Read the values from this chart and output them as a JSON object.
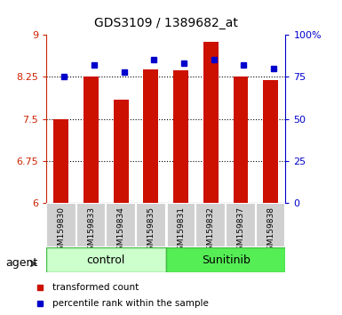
{
  "title": "GDS3109 / 1389682_at",
  "samples": [
    "GSM159830",
    "GSM159833",
    "GSM159834",
    "GSM159835",
    "GSM159831",
    "GSM159832",
    "GSM159837",
    "GSM159838"
  ],
  "red_values": [
    7.5,
    8.26,
    7.85,
    8.38,
    8.36,
    8.88,
    8.26,
    8.19
  ],
  "blue_values": [
    75,
    82,
    78,
    85,
    83,
    85,
    82,
    80
  ],
  "ylim_left": [
    6,
    9
  ],
  "ylim_right": [
    0,
    100
  ],
  "yticks_left": [
    6,
    6.75,
    7.5,
    8.25,
    9
  ],
  "yticks_right": [
    0,
    25,
    50,
    75,
    100
  ],
  "ytick_labels_right": [
    "0",
    "25",
    "50",
    "75",
    "100%"
  ],
  "bar_color": "#cc1100",
  "blue_color": "#0000cc",
  "bar_width": 0.5,
  "agent_label": "agent",
  "legend_items": [
    {
      "color": "#cc1100",
      "label": "transformed count"
    },
    {
      "color": "#0000cc",
      "label": "percentile rank within the sample"
    }
  ],
  "control_color": "#ccffcc",
  "sunitinib_color": "#55ee55",
  "group_edge_color": "#44bb44",
  "sample_bg_color": "#d0d0d0",
  "grid_ticks": [
    6.75,
    7.5,
    8.25
  ]
}
